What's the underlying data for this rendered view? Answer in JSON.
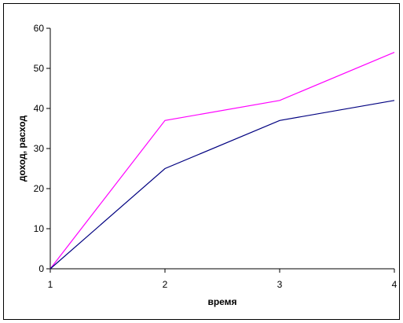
{
  "chart_data": {
    "type": "line",
    "x": [
      1,
      2,
      3,
      4
    ],
    "xlabel": "время",
    "ylabel": "доход, расход",
    "ylim": [
      0,
      60
    ],
    "xlim": [
      1,
      4
    ],
    "y_ticks": [
      "0",
      "10",
      "20",
      "30",
      "40",
      "50",
      "60"
    ],
    "x_ticks": [
      "1",
      "2",
      "3",
      "4"
    ],
    "grid": false,
    "legend": "none",
    "series": [
      {
        "values": [
          0,
          37,
          42,
          54
        ],
        "color": "#ff00ff"
      },
      {
        "values": [
          0,
          25,
          37,
          42
        ],
        "color": "#000080"
      }
    ]
  }
}
